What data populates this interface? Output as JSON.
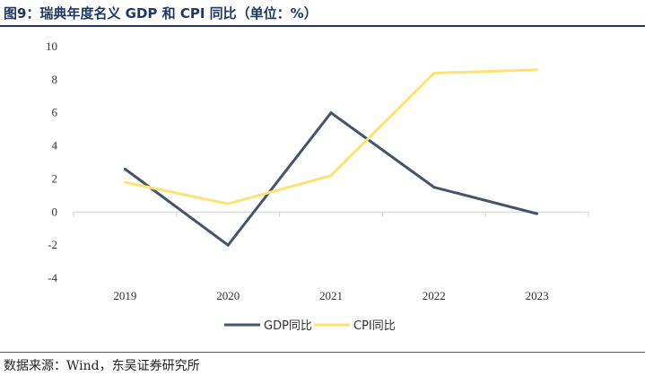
{
  "title": "图9：瑞典年度名义 GDP 和 CPI 同比（单位：%）",
  "source": "数据来源：Wind，东吴证券研究所",
  "chart_data": {
    "type": "line",
    "x": [
      "2019",
      "2020",
      "2021",
      "2022",
      "2023"
    ],
    "series": [
      {
        "name": "GDP同比",
        "values": [
          2.6,
          -2.0,
          6.0,
          1.5,
          -0.1
        ],
        "color": "#44546a"
      },
      {
        "name": "CPI同比",
        "values": [
          1.8,
          0.5,
          2.2,
          8.4,
          8.6
        ],
        "color": "#ffe173"
      }
    ],
    "ylim": [
      -4,
      10
    ],
    "yticks": [
      -4,
      -2,
      0,
      2,
      4,
      6,
      8,
      10
    ],
    "grid": false,
    "legend_position": "bottom"
  }
}
